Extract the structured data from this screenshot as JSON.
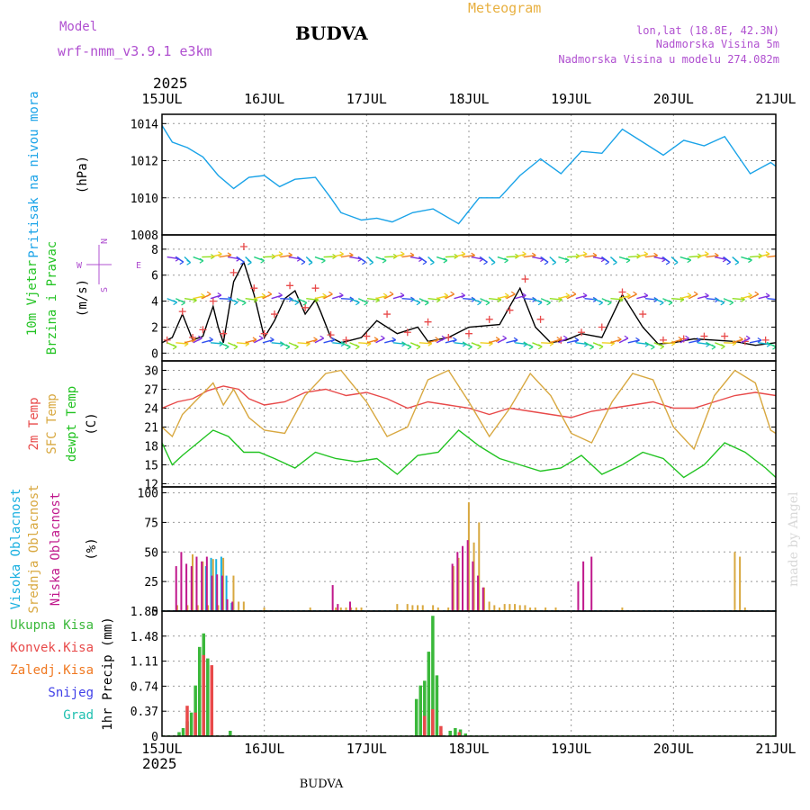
{
  "header": {
    "model_label": "Model",
    "model_name": "wrf-nmm_v3.9.1 e3km",
    "location_title": "BUDVA",
    "product": "Meteogram",
    "coords": "lon,lat (18.8E, 42.3N)",
    "elevation": "Nadmorska Visina 5m",
    "model_elevation": "Nadmorska Visina u modelu 274.082m",
    "year_top": "2025",
    "year_bottom": "2025",
    "footer_station": "BUDVA",
    "watermark": "made by Angel"
  },
  "colors": {
    "pressure": "#1aa3e8",
    "temp2m": "#e84a4a",
    "sfc": "#d8a840",
    "dew": "#22c322",
    "speed": "#000000",
    "gust": "#e84a4a",
    "high": "#1ab0e0",
    "mid": "#d8a840",
    "low": "#c0188c",
    "total": "#3ab83a",
    "convective": "#e84a4a",
    "freezing": "#f07820",
    "snow": "#4040e8",
    "hail": "#20c0b0",
    "header_purple": "#b050d0",
    "header_orange": "#e8b040",
    "compass": "#b050d0",
    "grid": "#999999"
  },
  "chart_data": {
    "type": "meteogram",
    "x_tick_labels": [
      "15JUL",
      "16JUL",
      "17JUL",
      "18JUL",
      "19JUL",
      "20JUL",
      "21JUL"
    ],
    "x_range_days": [
      0,
      6
    ],
    "panels": [
      {
        "id": "pressure",
        "type": "line",
        "ylabel": [
          "Pritisak na nivou mora",
          "(hPa)"
        ],
        "yticks": [
          "1008",
          "1010",
          "1012",
          "1014"
        ],
        "ylim": [
          1008,
          1014.5
        ],
        "series": [
          {
            "name": "Pritisak na nivou mora",
            "x": [
              0,
              0.1,
              0.25,
              0.4,
              0.55,
              0.7,
              0.85,
              1.0,
              1.15,
              1.3,
              1.5,
              1.65,
              1.75,
              1.95,
              2.1,
              2.25,
              2.45,
              2.65,
              2.9,
              3.1,
              3.3,
              3.5,
              3.7,
              3.9,
              4.1,
              4.3,
              4.5,
              4.7,
              4.9,
              5.1,
              5.3,
              5.5,
              5.75,
              5.95,
              6.0
            ],
            "values": [
              1013.9,
              1013.0,
              1012.7,
              1012.2,
              1011.2,
              1010.5,
              1011.1,
              1011.2,
              1010.6,
              1011.0,
              1011.1,
              1010.0,
              1009.2,
              1008.8,
              1008.9,
              1008.7,
              1009.2,
              1009.4,
              1008.6,
              1010.0,
              1010.0,
              1011.2,
              1012.1,
              1011.3,
              1012.5,
              1012.4,
              1013.7,
              1013.0,
              1012.3,
              1013.1,
              1012.8,
              1013.3,
              1011.3,
              1011.9,
              1011.7
            ]
          }
        ]
      },
      {
        "id": "wind",
        "type": "line",
        "ylabel": [
          "10m Vjetar",
          "Brzina i Pravac",
          "(m/s)"
        ],
        "yticks": [
          "0",
          "2",
          "4",
          "6",
          "8"
        ],
        "ylim": [
          -0.6,
          9.1
        ],
        "compass_labels": {
          "north": "N",
          "west": "W",
          "east": "E",
          "south": "S"
        },
        "series": [
          {
            "name": "Brzina",
            "x": [
              0,
              0.1,
              0.2,
              0.3,
              0.4,
              0.45,
              0.5,
              0.55,
              0.6,
              0.7,
              0.8,
              0.9,
              1.0,
              1.1,
              1.2,
              1.3,
              1.4,
              1.5,
              1.55,
              1.65,
              1.75,
              1.85,
              1.95,
              2.1,
              2.3,
              2.5,
              2.6,
              2.8,
              3.0,
              3.3,
              3.5,
              3.65,
              3.8,
              3.95,
              4.1,
              4.3,
              4.5,
              4.7,
              4.85,
              5.0,
              5.2,
              5.4,
              5.6,
              5.8,
              6.0
            ],
            "values": [
              0.8,
              1.2,
              3.0,
              1.0,
              1.3,
              2.5,
              3.6,
              2.0,
              0.8,
              5.5,
              7.0,
              4.5,
              1.2,
              2.5,
              4.2,
              4.8,
              3.0,
              4.1,
              3.2,
              1.2,
              0.8,
              1.0,
              1.2,
              2.5,
              1.5,
              2.0,
              0.9,
              1.2,
              2.0,
              2.2,
              5.0,
              2.0,
              0.8,
              1.0,
              1.5,
              1.2,
              4.5,
              2.0,
              0.7,
              0.8,
              1.1,
              1.0,
              0.9,
              0.6,
              0.8
            ]
          },
          {
            "name": "Udar",
            "x": [
              0.05,
              0.2,
              0.3,
              0.4,
              0.5,
              0.6,
              0.7,
              0.8,
              0.9,
              1.0,
              1.1,
              1.25,
              1.4,
              1.5,
              1.65,
              1.8,
              2.0,
              2.2,
              2.4,
              2.6,
              2.8,
              3.0,
              3.2,
              3.4,
              3.55,
              3.7,
              3.9,
              4.1,
              4.3,
              4.5,
              4.7,
              4.9,
              5.1,
              5.3,
              5.5,
              5.7,
              5.9
            ],
            "values": [
              1.0,
              3.2,
              1.2,
              1.8,
              4.0,
              1.5,
              6.2,
              8.2,
              5.0,
              1.5,
              3.0,
              5.2,
              3.5,
              5.0,
              1.4,
              1.0,
              1.3,
              3.0,
              1.6,
              2.4,
              1.2,
              1.5,
              2.6,
              3.3,
              5.7,
              2.6,
              1.0,
              1.6,
              2.0,
              4.7,
              3.0,
              1.0,
              1.1,
              1.3,
              1.3,
              0.9,
              1.0
            ]
          }
        ]
      },
      {
        "id": "temperature",
        "type": "line",
        "ylabel": [
          "2m Temp",
          "SFC Temp",
          "dewpt Temp",
          "(C)"
        ],
        "yticks": [
          "12",
          "15",
          "18",
          "21",
          "24",
          "27",
          "30"
        ],
        "ylim": [
          11.5,
          31.5
        ],
        "series": [
          {
            "name": "2m Temp",
            "x": [
              0,
              0.15,
              0.3,
              0.45,
              0.6,
              0.75,
              0.85,
              1.0,
              1.2,
              1.4,
              1.6,
              1.8,
              2.0,
              2.2,
              2.4,
              2.6,
              2.8,
              3.0,
              3.2,
              3.4,
              3.6,
              3.8,
              4.0,
              4.2,
              4.4,
              4.6,
              4.8,
              5.0,
              5.2,
              5.4,
              5.6,
              5.8,
              6.0
            ],
            "values": [
              24.0,
              25.0,
              25.5,
              26.8,
              27.5,
              27.0,
              25.5,
              24.5,
              25.0,
              26.5,
              27.0,
              26.0,
              26.5,
              25.5,
              24.0,
              25.0,
              24.5,
              24.0,
              23.0,
              24.0,
              23.5,
              23.0,
              22.5,
              23.5,
              24.0,
              24.5,
              25.0,
              24.0,
              24.0,
              25.0,
              26.0,
              26.5,
              26.0
            ]
          },
          {
            "name": "SFC Temp",
            "x": [
              0,
              0.1,
              0.2,
              0.35,
              0.5,
              0.6,
              0.7,
              0.85,
              1.0,
              1.2,
              1.4,
              1.6,
              1.75,
              2.0,
              2.2,
              2.4,
              2.6,
              2.8,
              3.0,
              3.2,
              3.4,
              3.6,
              3.8,
              4.0,
              4.2,
              4.4,
              4.6,
              4.8,
              5.0,
              5.2,
              5.4,
              5.6,
              5.8,
              5.95,
              6.0
            ],
            "values": [
              21.0,
              19.5,
              23.0,
              25.5,
              28.0,
              24.5,
              27.0,
              22.5,
              20.5,
              20.0,
              26.0,
              29.5,
              30.0,
              25.0,
              19.5,
              21.0,
              28.5,
              30.0,
              25.0,
              19.5,
              24.0,
              29.5,
              26.0,
              20.0,
              18.5,
              25.0,
              29.5,
              28.5,
              21.0,
              17.5,
              26.0,
              30.0,
              28.0,
              20.5,
              20.0
            ]
          },
          {
            "name": "dewpt Temp",
            "x": [
              0,
              0.1,
              0.2,
              0.35,
              0.5,
              0.65,
              0.8,
              0.95,
              1.1,
              1.3,
              1.5,
              1.7,
              1.9,
              2.1,
              2.3,
              2.5,
              2.7,
              2.9,
              3.1,
              3.3,
              3.5,
              3.7,
              3.9,
              4.1,
              4.3,
              4.5,
              4.7,
              4.9,
              5.1,
              5.3,
              5.5,
              5.7,
              5.9,
              6.0
            ],
            "values": [
              18.5,
              15.0,
              16.5,
              18.5,
              20.5,
              19.5,
              17.0,
              17.0,
              16.0,
              14.5,
              17.0,
              16.0,
              15.5,
              16.0,
              13.5,
              16.5,
              17.0,
              20.5,
              18.0,
              16.0,
              15.0,
              14.0,
              14.5,
              16.5,
              13.5,
              15.0,
              17.0,
              16.0,
              13.0,
              15.0,
              18.5,
              17.0,
              14.5,
              13.0
            ]
          }
        ]
      },
      {
        "id": "clouds",
        "type": "bar",
        "ylabel": [
          "Visoka Oblacnost",
          "Srednja Oblacnost",
          "Niska Oblacnost",
          "(%)"
        ],
        "yticks": [
          "0",
          "25",
          "50",
          "75",
          "100"
        ],
        "ylim": [
          0,
          105
        ],
        "series": [
          {
            "name": "Visoka Oblacnost",
            "x": [
              0.45,
              0.5,
              0.55,
              0.6,
              0.65,
              0.7
            ],
            "values": [
              38,
              45,
              44,
              46,
              30,
              7
            ]
          },
          {
            "name": "Srednja Oblacnost",
            "x": [
              0.15,
              0.25,
              0.3,
              0.35,
              0.4,
              0.45,
              0.5,
              0.55,
              0.6,
              0.7,
              0.75,
              0.8,
              1.0,
              1.45,
              1.7,
              1.75,
              1.8,
              1.85,
              1.9,
              1.95,
              2.3,
              2.4,
              2.45,
              2.5,
              2.55,
              2.65,
              2.7,
              2.8,
              2.85,
              2.9,
              3.0,
              3.05,
              3.1,
              3.15,
              3.2,
              3.25,
              3.3,
              3.35,
              3.4,
              3.45,
              3.5,
              3.55,
              3.6,
              3.65,
              3.75,
              3.85,
              4.5,
              5.6,
              5.65,
              5.7
            ],
            "values": [
              5,
              5,
              48,
              5,
              42,
              5,
              44,
              5,
              45,
              30,
              8,
              8,
              3,
              3,
              3,
              3,
              3,
              3,
              3,
              3,
              6,
              6,
              5,
              5,
              5,
              5,
              3,
              3,
              38,
              45,
              92,
              58,
              75,
              20,
              8,
              5,
              3,
              6,
              6,
              6,
              5,
              5,
              3,
              3,
              3,
              3,
              3,
              50,
              46,
              3
            ]
          },
          {
            "name": "Niska Oblacnost",
            "x": [
              0.12,
              0.17,
              0.22,
              0.27,
              0.32,
              0.37,
              0.42,
              0.47,
              0.52,
              0.57,
              0.62,
              0.67,
              1.65,
              1.7,
              1.82,
              2.82,
              2.87,
              2.92,
              2.97,
              3.02,
              3.07,
              3.12,
              4.05,
              4.1,
              4.18
            ],
            "values": [
              38,
              50,
              40,
              38,
              46,
              42,
              46,
              30,
              31,
              30,
              10,
              8,
              22,
              6,
              8,
              40,
              50,
              55,
              60,
              42,
              30,
              20,
              25,
              42,
              46
            ]
          }
        ]
      },
      {
        "id": "precip",
        "type": "bar",
        "ylabel": [
          "Ukupna Kisa",
          "Konvek.Kisa",
          "Zaledj.Kisa",
          "Snijeg",
          "Grad",
          "1hr Precip (mm)"
        ],
        "yticks": [
          "0",
          "0.37",
          "0.74",
          "1.11",
          "1.48",
          "1.85"
        ],
        "ylim": [
          0,
          1.85
        ],
        "series": [
          {
            "name": "Ukupna Kisa",
            "x": [
              0.2,
              0.24,
              0.28,
              0.32,
              0.36,
              0.4,
              0.44,
              0.48,
              0.52,
              0.7,
              2.52,
              2.56,
              2.6,
              2.64,
              2.68,
              2.72,
              2.76,
              2.85,
              2.9,
              2.95,
              3.0
            ],
            "values": [
              0.06,
              0.12,
              0.22,
              0.35,
              0.75,
              1.32,
              1.52,
              1.15,
              0.04,
              0.08,
              0.55,
              0.75,
              0.82,
              1.25,
              1.78,
              0.9,
              0.04,
              0.08,
              0.12,
              0.1,
              0.04
            ]
          },
          {
            "name": "Konvek.Kisa",
            "x": [
              0.26,
              0.34,
              0.42,
              0.5,
              2.58,
              2.66,
              2.74,
              2.92
            ],
            "values": [
              0.45,
              0.35,
              1.2,
              1.05,
              0.3,
              0.4,
              0.15,
              0.06
            ]
          },
          {
            "name": "Zaledj.Kisa",
            "x": [],
            "values": []
          },
          {
            "name": "Snijeg",
            "x": [],
            "values": []
          },
          {
            "name": "Grad",
            "x": [],
            "values": []
          }
        ]
      }
    ]
  }
}
